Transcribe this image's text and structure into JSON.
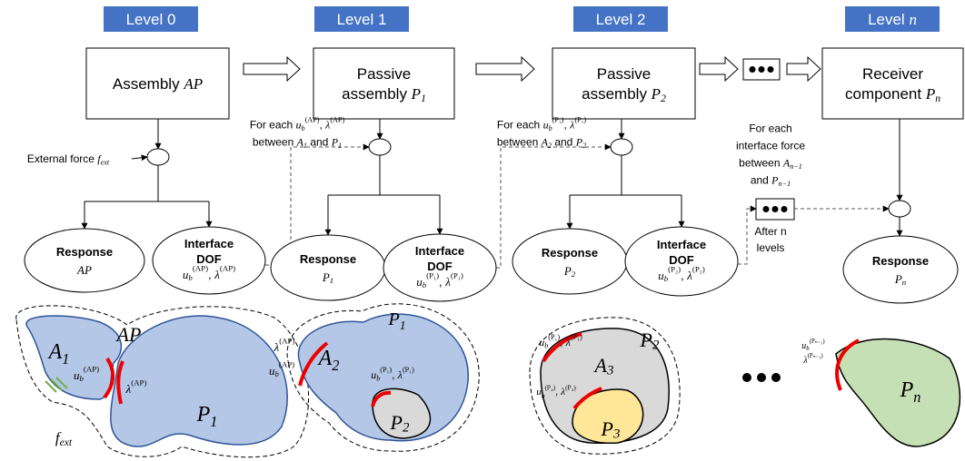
{
  "levels": [
    {
      "tag": [
        [
          "Level 0"
        ]
      ],
      "box": [
        [
          "Assembly ",
          {
            "i": "AP"
          }
        ]
      ]
    },
    {
      "tag": [
        [
          "Level 1"
        ]
      ],
      "box": [
        [
          "Passive"
        ],
        [
          "assembly ",
          {
            "i": "P",
            "sub": "1"
          }
        ]
      ]
    },
    {
      "tag": [
        [
          "Level 2"
        ]
      ],
      "box": [
        [
          "Passive"
        ],
        [
          "assembly ",
          {
            "i": "P",
            "sub": "2"
          }
        ]
      ]
    },
    {
      "tag": [
        [
          "Level ",
          {
            "i": "n"
          }
        ]
      ],
      "box": [
        [
          "Receiver"
        ],
        [
          "component ",
          {
            "i": "P",
            "sub": "n"
          }
        ]
      ]
    }
  ],
  "annotations": {
    "external_force": [
      [
        "External force ",
        {
          "i": "f",
          "sub": "ext"
        }
      ]
    ],
    "for_each_1": [
      [
        "For each ",
        {
          "i": "u",
          "sub": "b",
          "sup": "(AP)"
        },
        ", ",
        {
          "i": "λ",
          "sup": "(AP)"
        }
      ],
      [
        "between ",
        {
          "i": "A",
          "sub": "1"
        },
        " and ",
        {
          "i": "P",
          "sub": "1"
        }
      ]
    ],
    "for_each_2": [
      [
        "For each ",
        {
          "i": "u",
          "sub": "b",
          "sup": "(P₁)"
        },
        ", ",
        {
          "i": "λ",
          "sup": "(P₁)"
        }
      ],
      [
        "between ",
        {
          "i": "A",
          "sub": "2"
        },
        " and ",
        {
          "i": "P",
          "sub": "2"
        }
      ]
    ],
    "for_each_n": [
      [
        "For each"
      ],
      [
        "interface force"
      ],
      [
        "between ",
        {
          "i": "A",
          "sub": "n−1"
        }
      ],
      [
        "and ",
        {
          "i": "P",
          "sub": "n−1"
        }
      ]
    ],
    "after_n": [
      [
        "After n"
      ],
      [
        "levels"
      ]
    ]
  },
  "outputs": [
    [
      [
        "Response"
      ],
      [
        {
          "i": "AP"
        }
      ]
    ],
    [
      [
        "Interface"
      ],
      [
        "DOF"
      ],
      [
        {
          "i": "u",
          "sub": "b",
          "sup": "(AP)"
        },
        ", ",
        {
          "i": "λ",
          "sup": "(AP)"
        }
      ]
    ],
    [
      [
        "Response"
      ],
      [
        {
          "i": "P",
          "sub": "1"
        }
      ]
    ],
    [
      [
        "Interface"
      ],
      [
        "DOF"
      ],
      [
        {
          "i": "u",
          "sub": "b",
          "sup": "(P₁)"
        },
        ", ",
        {
          "i": "λ",
          "sup": "(P₁)"
        }
      ]
    ],
    [
      [
        "Response"
      ],
      [
        {
          "i": "P",
          "sub": "2"
        }
      ]
    ],
    [
      [
        "Interface"
      ],
      [
        "DOF"
      ],
      [
        {
          "i": "u",
          "sub": "b",
          "sup": "(P₂)"
        },
        ", ",
        {
          "i": "λ",
          "sup": "(P₂)"
        }
      ]
    ],
    [
      [
        "Response"
      ],
      [
        {
          "i": "P",
          "sub": "n"
        }
      ]
    ]
  ],
  "figures": [
    [
      [
        [
          {
            "i": "AP"
          }
        ]
      ],
      [
        [
          {
            "i": "A",
            "sub": "1"
          }
        ]
      ],
      [
        [
          {
            "i": "u",
            "sub": "b",
            "sup": "(AP)"
          }
        ]
      ],
      [
        [
          {
            "i": "λ",
            "sup": "(AP)"
          }
        ]
      ],
      [
        [
          {
            "i": "P",
            "sub": "1"
          }
        ]
      ],
      [
        [
          {
            "i": "f",
            "sub": "ext"
          }
        ]
      ]
    ],
    [
      [
        [
          {
            "i": "P",
            "sub": "1"
          }
        ]
      ],
      [
        [
          {
            "i": "λ",
            "sup": "(AP)"
          }
        ]
      ],
      [
        [
          {
            "i": "u",
            "sub": "b",
            "sup": "(AP)"
          }
        ]
      ],
      [
        [
          {
            "i": "A",
            "sub": "2"
          }
        ]
      ],
      [
        [
          {
            "i": "u",
            "sub": "b",
            "sup": "(P₁)"
          },
          ", ",
          {
            "i": "λ",
            "sup": "(P₁)"
          }
        ]
      ],
      [
        [
          {
            "i": "P",
            "sub": "2"
          }
        ]
      ]
    ],
    [
      [
        [
          {
            "i": "u",
            "sub": "b",
            "sup": "(P₁)"
          },
          ", ",
          {
            "i": "λ",
            "sup": "(P₁)"
          }
        ]
      ],
      [
        [
          {
            "i": "P",
            "sub": "2"
          }
        ]
      ],
      [
        [
          {
            "i": "A",
            "sub": "3"
          }
        ]
      ],
      [
        [
          {
            "i": "u",
            "sub": "b",
            "sup": "(P₂)"
          },
          ", ",
          {
            "i": "λ",
            "sup": "(P₂)"
          }
        ]
      ],
      [
        [
          {
            "i": "P",
            "sub": "3"
          }
        ]
      ]
    ],
    [
      [
        [
          {
            "i": "u",
            "sub": "b",
            "sup": "(Pₙ₋₁)"
          }
        ]
      ],
      [
        [
          {
            "i": "λ",
            "sup": "(Pₙ₋₁)"
          }
        ]
      ],
      [
        [
          {
            "i": "P",
            "sub": "n"
          }
        ]
      ]
    ]
  ]
}
